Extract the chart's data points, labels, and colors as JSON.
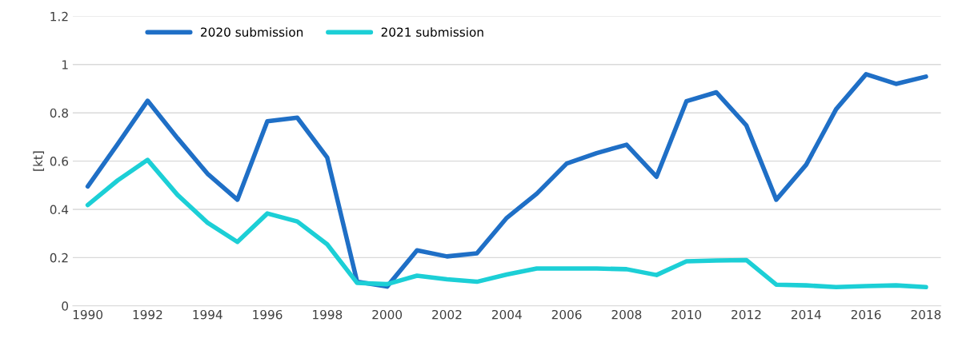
{
  "chart_data": {
    "type": "line",
    "ylabel": "[kt]",
    "categories": [
      "1990",
      null,
      "1992",
      null,
      "1994",
      null,
      "1996",
      null,
      "1998",
      null,
      "2000",
      null,
      "2002",
      null,
      "2004",
      null,
      "2006",
      null,
      "2008",
      null,
      "2010",
      null,
      "2012",
      null,
      "2014",
      null,
      "2016",
      null,
      "2018"
    ],
    "series": [
      {
        "name": "2020 submission",
        "color": "#1f6fc6",
        "values": [
          0.495,
          0.67,
          0.85,
          0.695,
          0.548,
          0.44,
          0.765,
          0.78,
          0.615,
          0.1,
          0.08,
          0.23,
          0.205,
          0.218,
          0.365,
          0.465,
          0.59,
          0.633,
          0.668,
          0.535,
          0.848,
          0.885,
          0.748,
          0.44,
          0.585,
          0.815,
          0.96,
          0.92,
          0.95
        ]
      },
      {
        "name": "2021 submission",
        "color": "#1ccfd6",
        "values": [
          0.418,
          0.52,
          0.605,
          0.46,
          0.345,
          0.265,
          0.383,
          0.35,
          0.255,
          0.095,
          0.09,
          0.125,
          0.11,
          0.1,
          0.13,
          0.155,
          0.155,
          0.155,
          0.152,
          0.128,
          0.185,
          0.188,
          0.19,
          0.088,
          0.085,
          0.078,
          0.082,
          0.085,
          0.078
        ]
      }
    ],
    "ylim": [
      0,
      1.2
    ],
    "yticks": [
      0,
      0.2,
      0.4,
      0.6,
      0.8,
      1,
      1.2
    ],
    "grid": "y",
    "legend": "top",
    "marker": "none",
    "line_style": "solid"
  }
}
